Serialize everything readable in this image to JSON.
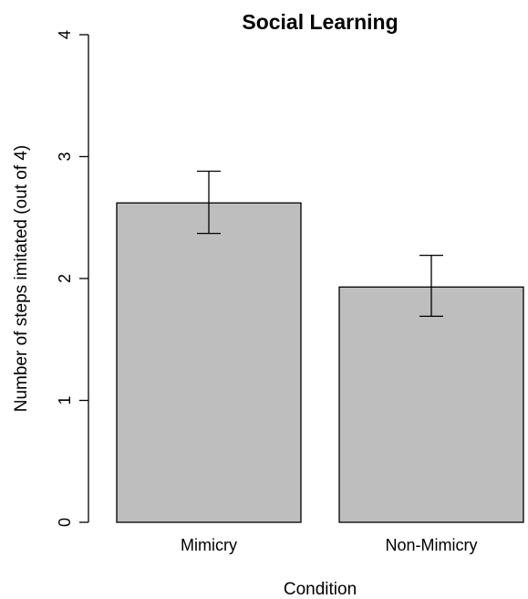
{
  "chart_data": {
    "type": "bar",
    "title": "Social Learning",
    "xlabel": "Condition",
    "ylabel": "Number of steps imitated (out of 4)",
    "categories": [
      "Mimicry",
      "Non-Mimicry"
    ],
    "values": [
      2.62,
      1.93
    ],
    "error_upper": [
      2.88,
      2.19
    ],
    "error_lower": [
      2.37,
      1.69
    ],
    "ylim": [
      0,
      4
    ],
    "yticks": [
      "0",
      "1",
      "2",
      "3",
      "4"
    ],
    "grid": false,
    "colors": {
      "bar_fill": "#bebebe",
      "bar_stroke": "#000000"
    }
  }
}
